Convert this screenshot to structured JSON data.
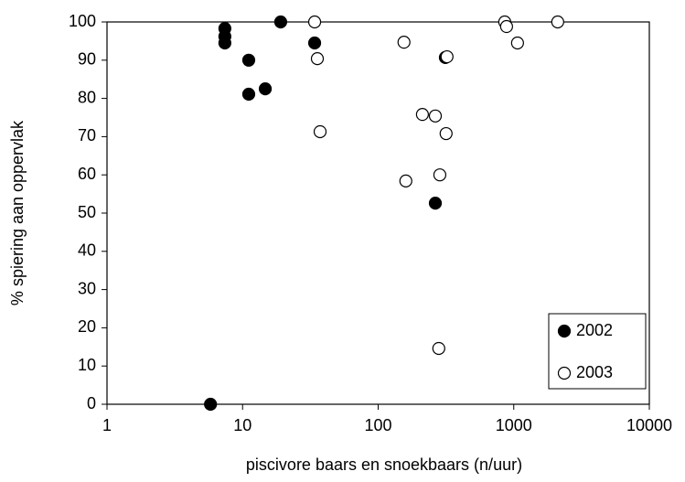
{
  "chart_data": {
    "type": "scatter",
    "x_label": "piscivore baars en snoekbaars (n/uur)",
    "y_label": "% spiering aan oppervlak",
    "xlim": [
      1,
      10000
    ],
    "xticks": [
      1,
      10,
      100,
      1000,
      10000
    ],
    "x_log": true,
    "ylim": [
      0,
      100
    ],
    "yticks": [
      0,
      10,
      20,
      30,
      40,
      50,
      60,
      70,
      80,
      90,
      100
    ],
    "legend": "lower right",
    "series": [
      {
        "name": "2002",
        "color": "#000000",
        "filled": true,
        "x": [
          5.8,
          7.4,
          7.4,
          7.4,
          11.1,
          11.1,
          14.7,
          19.1,
          34,
          313,
          264
        ],
        "values": [
          0,
          98.3,
          96.2,
          94.5,
          90,
          81.1,
          82.5,
          100,
          94.5,
          90.7,
          52.6
        ]
      },
      {
        "name": "2003",
        "color": "#000000",
        "filled": false,
        "x": [
          34,
          35.6,
          37.3,
          155,
          160,
          212,
          264,
          280,
          322,
          317,
          285,
          858,
          885,
          1066,
          2110
        ],
        "values": [
          100,
          90.4,
          71.3,
          94.7,
          58.4,
          75.8,
          75.4,
          14.6,
          90.9,
          70.8,
          60,
          100,
          98.8,
          94.5,
          100
        ]
      }
    ]
  }
}
